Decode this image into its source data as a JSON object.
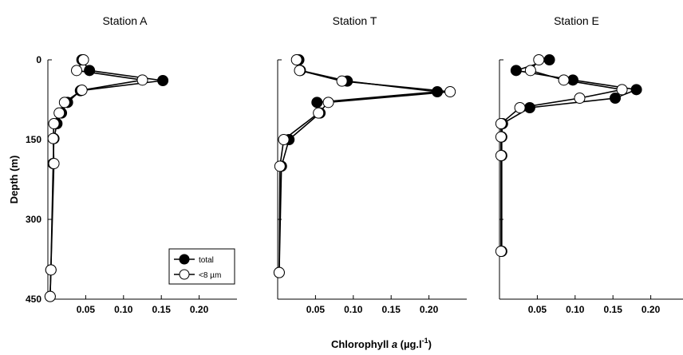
{
  "chart_data": {
    "type": "line",
    "xlabel": {
      "prefix": "Chlorophyll ",
      "italic": "a",
      "suffix": " (µg.l",
      "sup": "-1",
      "close": ")"
    },
    "ylabel": "Depth (m)",
    "y_inverted": true,
    "ylim": [
      0,
      450
    ],
    "yticks": [
      "0",
      "150",
      "300",
      "450"
    ],
    "xlim": [
      0,
      0.25
    ],
    "xticks": [
      "0.05",
      "0.10",
      "0.15",
      "0.20"
    ],
    "legend": {
      "placement": "bottom-right of first panel",
      "entries": [
        {
          "series": "total",
          "label": "total",
          "marker": "filled",
          "color": "#000000"
        },
        {
          "series": "lt8",
          "label": "<8 µm",
          "marker": "open",
          "color": "#ffffff"
        }
      ]
    },
    "panels": [
      {
        "title": "Station A",
        "series": [
          {
            "key": "total",
            "points": [
              [
                0.045,
                0
              ],
              [
                0.055,
                20
              ],
              [
                0.152,
                39
              ],
              [
                0.043,
                58
              ],
              [
                0.026,
                80
              ],
              [
                0.018,
                100
              ],
              [
                0.012,
                120
              ],
              [
                0.008,
                148
              ],
              [
                0.007,
                195
              ],
              [
                0.004,
                395
              ],
              [
                0.003,
                445
              ]
            ]
          },
          {
            "key": "lt8",
            "points": [
              [
                0.047,
                0
              ],
              [
                0.038,
                20
              ],
              [
                0.125,
                38
              ],
              [
                0.045,
                57
              ],
              [
                0.022,
                80
              ],
              [
                0.015,
                100
              ],
              [
                0.008,
                120
              ],
              [
                0.007,
                148
              ],
              [
                0.008,
                195
              ],
              [
                0.004,
                395
              ],
              [
                0.003,
                445
              ]
            ]
          }
        ]
      },
      {
        "title": "Station T",
        "series": [
          {
            "key": "total",
            "points": [
              [
                0.028,
                0
              ],
              [
                0.03,
                20
              ],
              [
                0.092,
                40
              ],
              [
                0.211,
                60
              ],
              [
                0.052,
                80
              ],
              [
                0.056,
                100
              ],
              [
                0.015,
                150
              ],
              [
                0.005,
                200
              ],
              [
                0.002,
                400
              ]
            ]
          },
          {
            "key": "lt8",
            "points": [
              [
                0.025,
                0
              ],
              [
                0.029,
                20
              ],
              [
                0.085,
                40
              ],
              [
                0.228,
                60
              ],
              [
                0.067,
                80
              ],
              [
                0.054,
                100
              ],
              [
                0.008,
                150
              ],
              [
                0.003,
                200
              ],
              [
                0.002,
                400
              ]
            ]
          }
        ]
      },
      {
        "title": "Station E",
        "series": [
          {
            "key": "total",
            "points": [
              [
                0.066,
                0
              ],
              [
                0.022,
                20
              ],
              [
                0.097,
                38
              ],
              [
                0.181,
                56
              ],
              [
                0.153,
                72
              ],
              [
                0.04,
                90
              ],
              [
                0.004,
                120
              ],
              [
                0.003,
                145
              ],
              [
                0.003,
                180
              ],
              [
                0.003,
                360
              ]
            ]
          },
          {
            "key": "lt8",
            "points": [
              [
                0.052,
                0
              ],
              [
                0.041,
                20
              ],
              [
                0.085,
                38
              ],
              [
                0.162,
                56
              ],
              [
                0.106,
                72
              ],
              [
                0.027,
                90
              ],
              [
                0.002,
                120
              ],
              [
                0.002,
                145
              ],
              [
                0.002,
                180
              ],
              [
                0.002,
                360
              ]
            ]
          }
        ]
      }
    ]
  }
}
